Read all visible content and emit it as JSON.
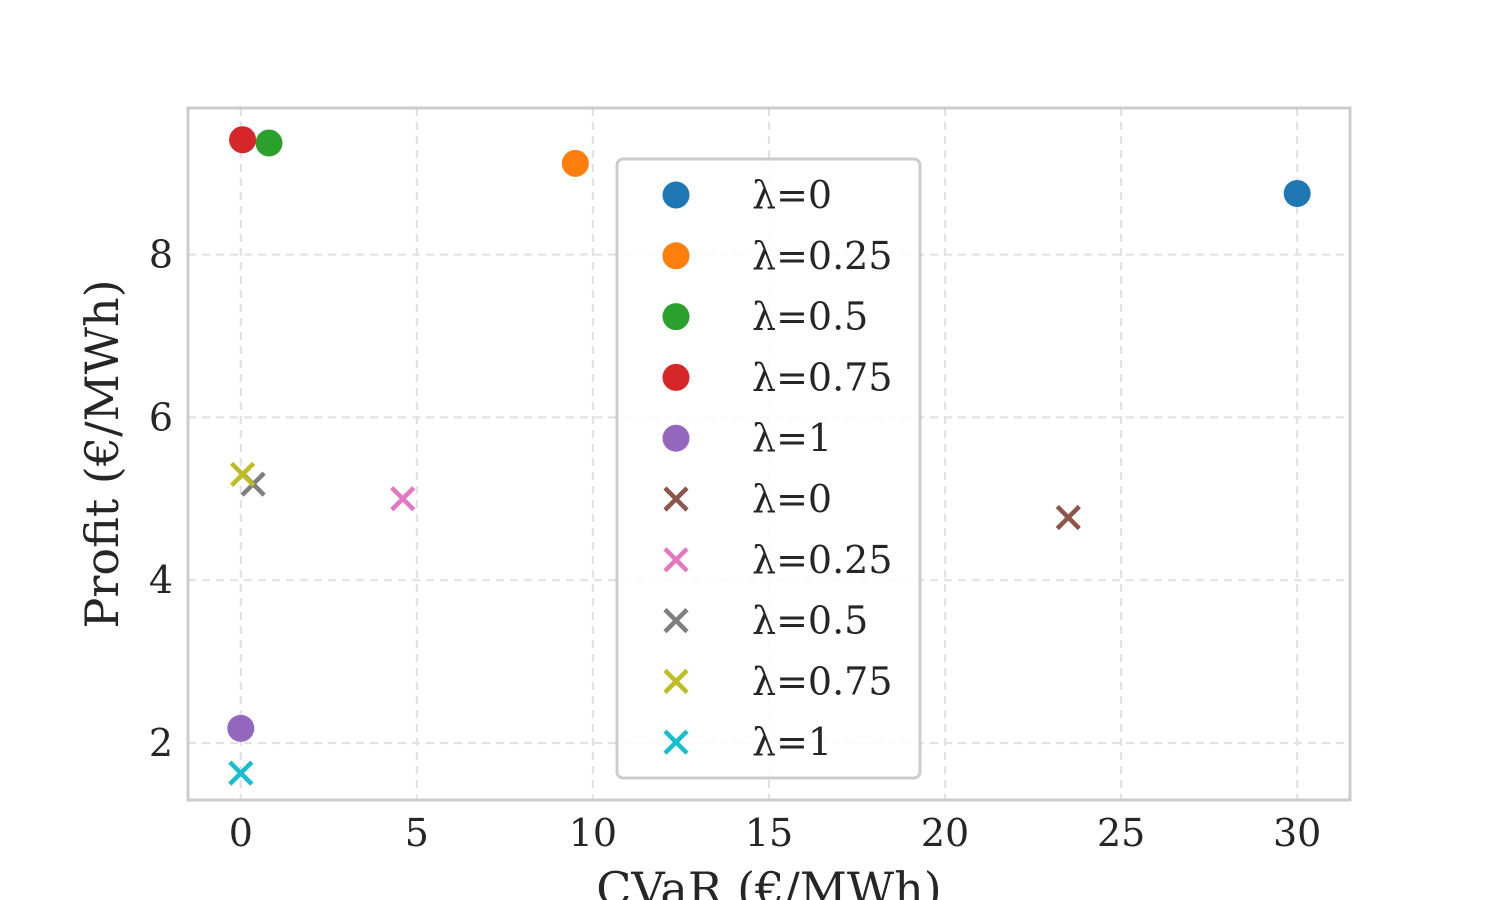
{
  "chart_data": {
    "type": "scatter",
    "title": "",
    "xlabel": "CVaR (€/MWh)",
    "ylabel": "Profit (€/MWh)",
    "xlim": [
      -1.5,
      31.5
    ],
    "ylim": [
      1.3,
      9.8
    ],
    "xticks": [
      0,
      5,
      10,
      15,
      20,
      25,
      30
    ],
    "yticks": [
      2,
      4,
      6,
      8
    ],
    "grid": true,
    "legend_position": "upper center",
    "series": [
      {
        "name": "λ=0",
        "marker": "circle",
        "color": "#1f77b4",
        "points": [
          {
            "x": 30.0,
            "y": 8.75
          }
        ]
      },
      {
        "name": "λ=0.25",
        "marker": "circle",
        "color": "#ff7f0e",
        "points": [
          {
            "x": 9.5,
            "y": 9.12
          }
        ]
      },
      {
        "name": "λ=0.5",
        "marker": "circle",
        "color": "#2ca02c",
        "points": [
          {
            "x": 0.8,
            "y": 9.37
          }
        ]
      },
      {
        "name": "λ=0.75",
        "marker": "circle",
        "color": "#d62728",
        "points": [
          {
            "x": 0.05,
            "y": 9.41
          }
        ]
      },
      {
        "name": "λ=1",
        "marker": "circle",
        "color": "#9467bd",
        "points": [
          {
            "x": 0.0,
            "y": 2.18
          }
        ]
      },
      {
        "name": "λ=0",
        "marker": "x",
        "color": "#8c564b",
        "points": [
          {
            "x": 23.5,
            "y": 4.77
          }
        ]
      },
      {
        "name": "λ=0.25",
        "marker": "x",
        "color": "#e377c2",
        "points": [
          {
            "x": 4.6,
            "y": 5.0
          }
        ]
      },
      {
        "name": "λ=0.5",
        "marker": "x",
        "color": "#7f7f7f",
        "points": [
          {
            "x": 0.35,
            "y": 5.18
          }
        ]
      },
      {
        "name": "λ=0.75",
        "marker": "x",
        "color": "#bcbd22",
        "points": [
          {
            "x": 0.05,
            "y": 5.3
          }
        ]
      },
      {
        "name": "λ=1",
        "marker": "x",
        "color": "#17becf",
        "points": [
          {
            "x": 0.0,
            "y": 1.63
          }
        ]
      }
    ]
  }
}
